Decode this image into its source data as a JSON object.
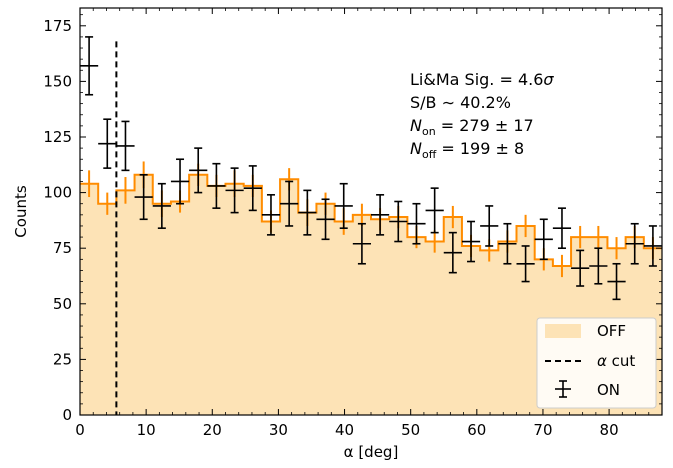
{
  "chart_data": {
    "type": "histogram",
    "xlabel": "α [deg]",
    "ylabel": "Counts",
    "xlim": [
      0,
      88
    ],
    "ylim": [
      0,
      183
    ],
    "bin_width": 2.75,
    "x_ticks": [
      0,
      10,
      20,
      30,
      40,
      50,
      60,
      70,
      80
    ],
    "y_ticks": [
      0,
      25,
      50,
      75,
      100,
      125,
      150,
      175
    ],
    "cut_line": {
      "x": 5.5,
      "label": "α cut"
    },
    "annotations": {
      "sig_line": "Li&Ma Sig. = 4.6σ",
      "sb_line": "S/B ∼ 40.2%",
      "non_line": "N_on = 279 ± 17",
      "noff_line": "N_off = 199 ± 8"
    },
    "series": [
      {
        "name": "OFF",
        "style": "filled-step",
        "fill_color": "#fde3b6",
        "line_color": "#ff8c00",
        "errors": [
          6,
          5,
          6,
          6,
          6,
          5,
          5,
          5,
          6,
          5,
          5,
          5,
          6,
          5,
          6,
          5,
          5,
          5,
          5,
          5,
          5,
          5,
          5,
          5,
          5,
          5,
          5,
          5,
          5,
          5,
          5,
          5
        ],
        "values": [
          104,
          95,
          101,
          108,
          95,
          96,
          108,
          103,
          104,
          103,
          87,
          106,
          91,
          95,
          87,
          90,
          88,
          89,
          80,
          78,
          89,
          76,
          74,
          78,
          85,
          70,
          67,
          80,
          80,
          75,
          80,
          75
        ]
      },
      {
        "name": "ON",
        "style": "errorbar",
        "color": "#000000",
        "values": [
          157,
          122,
          121,
          98,
          94,
          105,
          110,
          103,
          101,
          102,
          90,
          95,
          91,
          88,
          94,
          77,
          90,
          87,
          86,
          92,
          73,
          78,
          85,
          77,
          68,
          79,
          84,
          66,
          67,
          60,
          77,
          76
        ],
        "errors": [
          13,
          11,
          11,
          10,
          10,
          10,
          10,
          10,
          10,
          10,
          9,
          10,
          10,
          9,
          10,
          9,
          9,
          9,
          9,
          10,
          9,
          9,
          9,
          9,
          8,
          9,
          9,
          8,
          8,
          8,
          9,
          9
        ]
      }
    ],
    "legend": {
      "position": "lower-right",
      "entries": [
        "OFF",
        "α cut",
        "ON"
      ]
    }
  }
}
